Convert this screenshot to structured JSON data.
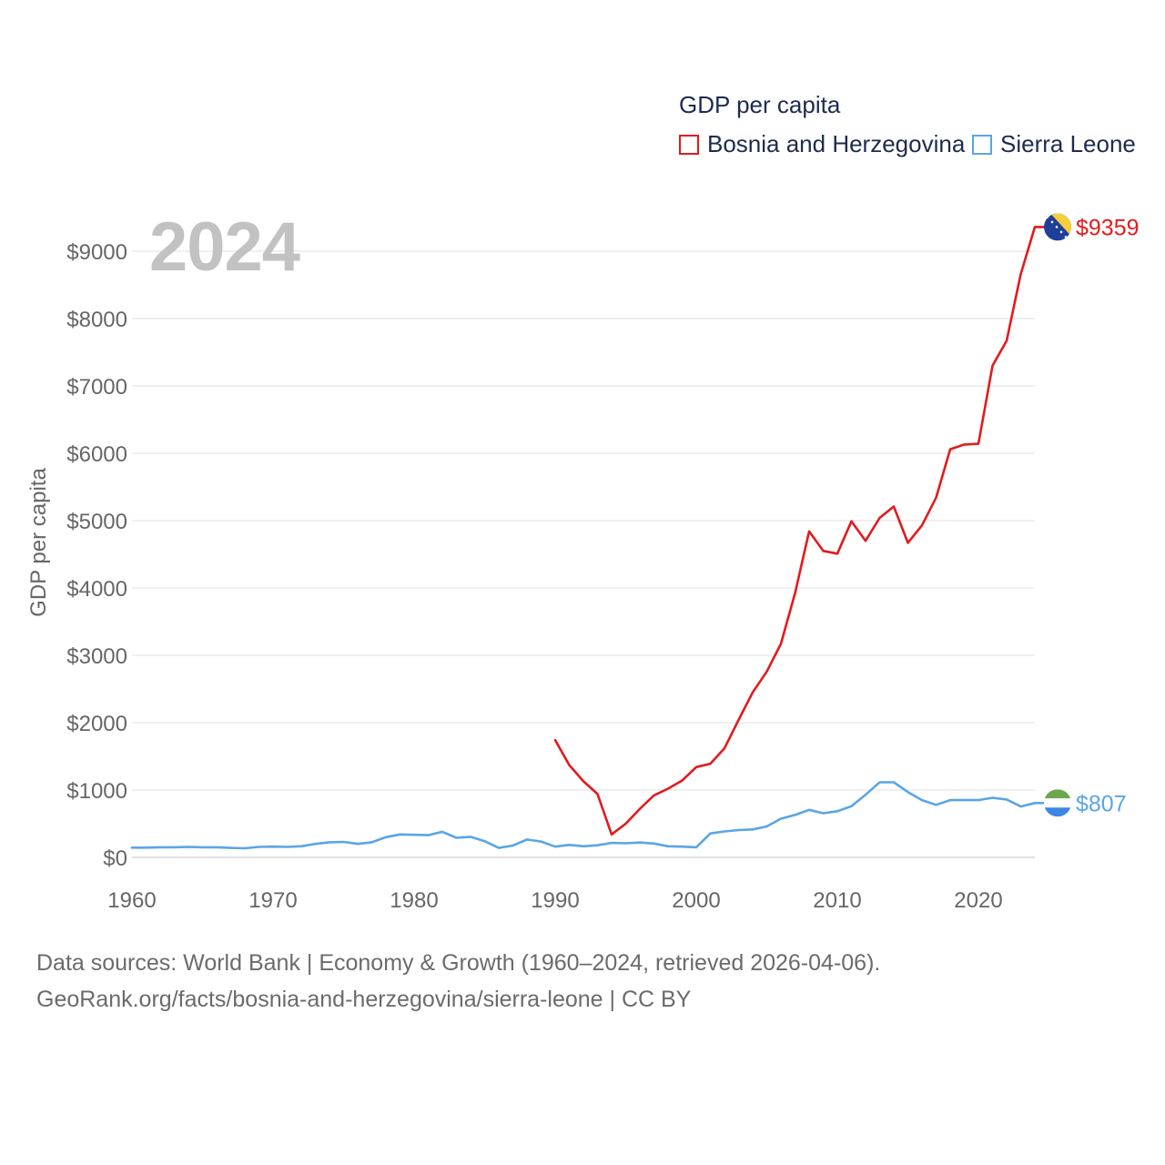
{
  "legend": {
    "title": "GDP per capita",
    "items": [
      {
        "label": "Bosnia and Herzegovina",
        "color": "#e31a1c"
      },
      {
        "label": "Sierra Leone",
        "color": "#5aa5e6"
      }
    ]
  },
  "year_label": "2024",
  "footer": {
    "line1": "Data sources: World Bank | Economy & Growth (1960–2024, retrieved 2026-04-06).",
    "line2": "GeoRank.org/facts/bosnia-and-herzegovina/sierra-leone | CC BY"
  },
  "chart_data": {
    "type": "line",
    "title": "GDP per capita",
    "xlabel": "",
    "ylabel": "GDP per capita",
    "xlim": [
      1960,
      2024
    ],
    "ylim": [
      0,
      9500
    ],
    "x_ticks": [
      1960,
      1970,
      1980,
      1990,
      2000,
      2010,
      2020
    ],
    "x_tick_labels": [
      "1960",
      "1970",
      "1980",
      "1990",
      "2000",
      "2010",
      "2020"
    ],
    "y_ticks": [
      0,
      1000,
      2000,
      3000,
      4000,
      5000,
      6000,
      7000,
      8000,
      9000
    ],
    "y_tick_labels": [
      "$0",
      "$1000",
      "$2000",
      "$3000",
      "$4000",
      "$5000",
      "$6000",
      "$7000",
      "$8000",
      "$9000"
    ],
    "grid": true,
    "series": [
      {
        "name": "Bosnia and Herzegovina",
        "color": "#e31a1c",
        "end_label": "$9359",
        "flag_icon": "bosnia-flag-icon",
        "x": [
          1990,
          1991,
          1992,
          1993,
          1994,
          1995,
          1996,
          1997,
          1998,
          1999,
          2000,
          2001,
          2002,
          2003,
          2004,
          2005,
          2006,
          2007,
          2008,
          2009,
          2010,
          2011,
          2012,
          2013,
          2014,
          2015,
          2016,
          2017,
          2018,
          2019,
          2020,
          2021,
          2022,
          2023,
          2024
        ],
        "values": [
          1740,
          1370,
          1130,
          940,
          340,
          500,
          720,
          920,
          1020,
          1140,
          1340,
          1390,
          1620,
          2040,
          2450,
          2760,
          3170,
          3920,
          4840,
          4550,
          4510,
          4990,
          4700,
          5040,
          5210,
          4670,
          4930,
          5340,
          6060,
          6130,
          6140,
          7300,
          7670,
          8660,
          9359
        ]
      },
      {
        "name": "Sierra Leone",
        "color": "#5aa5e6",
        "end_label": "$807",
        "flag_icon": "sierra-leone-flag-icon",
        "x": [
          1960,
          1961,
          1962,
          1963,
          1964,
          1965,
          1966,
          1967,
          1968,
          1969,
          1970,
          1971,
          1972,
          1973,
          1974,
          1975,
          1976,
          1977,
          1978,
          1979,
          1980,
          1981,
          1982,
          1983,
          1984,
          1985,
          1986,
          1987,
          1988,
          1989,
          1990,
          1991,
          1992,
          1993,
          1994,
          1995,
          1996,
          1997,
          1998,
          1999,
          2000,
          2001,
          2002,
          2003,
          2004,
          2005,
          2006,
          2007,
          2008,
          2009,
          2010,
          2011,
          2012,
          2013,
          2014,
          2015,
          2016,
          2017,
          2018,
          2019,
          2020,
          2021,
          2022,
          2023,
          2024
        ],
        "values": [
          145,
          145,
          150,
          150,
          155,
          150,
          150,
          140,
          135,
          155,
          160,
          155,
          165,
          200,
          225,
          230,
          200,
          225,
          300,
          340,
          335,
          330,
          380,
          290,
          305,
          240,
          140,
          175,
          265,
          235,
          160,
          185,
          165,
          180,
          215,
          210,
          220,
          205,
          165,
          160,
          150,
          355,
          385,
          405,
          415,
          460,
          575,
          630,
          705,
          655,
          685,
          760,
          930,
          1115,
          1115,
          970,
          850,
          780,
          850,
          850,
          850,
          885,
          860,
          755,
          807
        ]
      }
    ]
  }
}
